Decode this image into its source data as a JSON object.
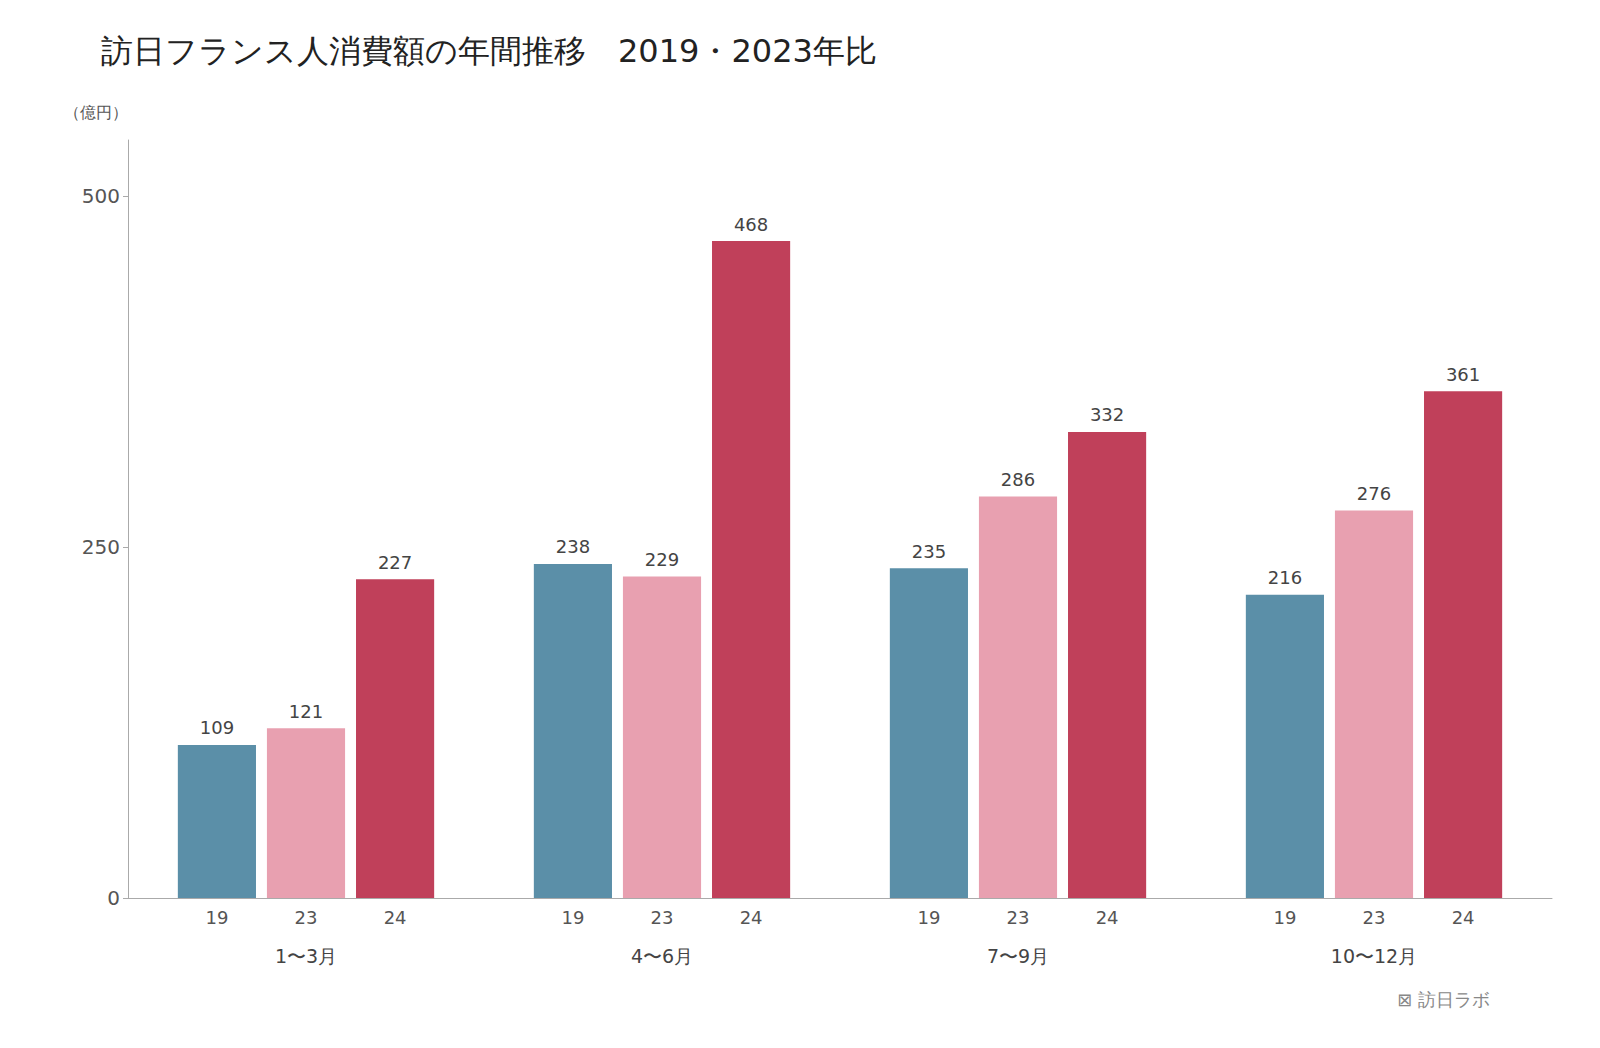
{
  "chart_data": {
    "type": "bar",
    "title": "訪日フランス人消費額の年間推移　2019・2023年比",
    "ylabel": "（億円）",
    "categories": [
      "1〜3月",
      "4〜6月",
      "7〜9月",
      "10〜12月"
    ],
    "series": [
      {
        "name": "19",
        "color": "#5b8fa8",
        "values": [
          109,
          238,
          235,
          216
        ]
      },
      {
        "name": "23",
        "color": "#e8a0b0",
        "values": [
          121,
          229,
          286,
          276
        ]
      },
      {
        "name": "24",
        "color": "#c0405a",
        "values": [
          227,
          468,
          332,
          361
        ]
      }
    ],
    "ylim": [
      0,
      540
    ],
    "yticks": [
      0,
      250,
      500
    ],
    "grid": false,
    "data_labels": true,
    "annotation": "⊠ 訪日ラボ"
  }
}
